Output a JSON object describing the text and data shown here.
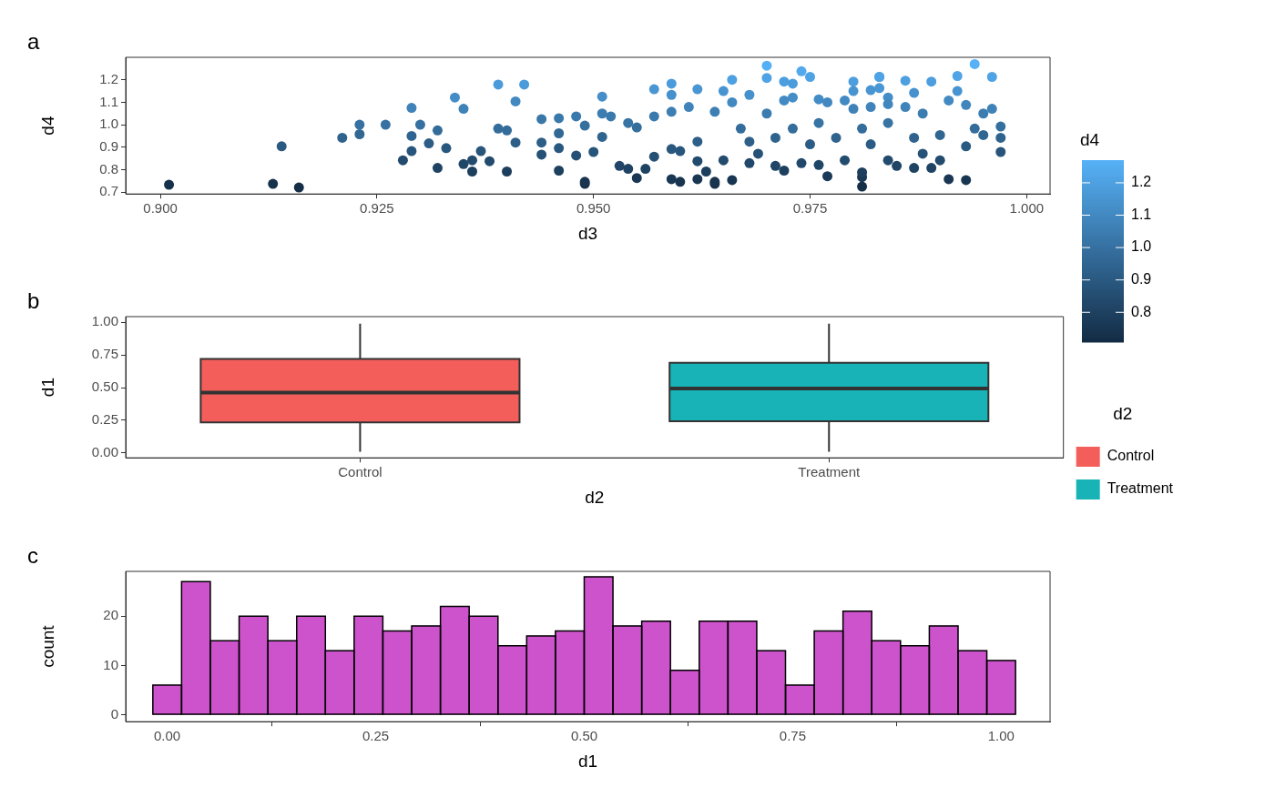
{
  "chart_data": [
    {
      "type": "scatter",
      "title": "a",
      "xlabel": "d3",
      "ylabel": "d4",
      "clabel": "d4",
      "xlim": [
        0.896,
        1.0027
      ],
      "ylim": [
        0.692,
        1.3
      ],
      "xticks": [
        {
          "value": 0.9,
          "label": "0.900"
        },
        0.925,
        {
          "value": 0.95,
          "label": "0.950"
        },
        0.975,
        {
          "value": 1,
          "label": "1.000"
        }
      ],
      "yticks": [
        0.7,
        0.8,
        0.9,
        {
          "value": 1,
          "label": "1.0"
        },
        1.1,
        1.2
      ],
      "clim": [
        0.708,
        1.27
      ],
      "cticks": [
        0.8,
        0.9,
        {
          "value": 1,
          "label": "1.0"
        },
        1.1,
        1.2
      ],
      "grid": false,
      "marker": "circle",
      "x": [
        0.901,
        0.913,
        0.914,
        0.916,
        0.921,
        0.923,
        0.923,
        0.926,
        0.929,
        0.929,
        0.929,
        0.928,
        0.93,
        0.931,
        0.932,
        0.932,
        0.933,
        0.934,
        0.935,
        0.935,
        0.936,
        0.936,
        0.937,
        0.938,
        0.939,
        0.939,
        0.94,
        0.94,
        0.942,
        0.941,
        0.941,
        0.944,
        0.944,
        0.944,
        0.946,
        0.946,
        0.946,
        0.946,
        0.948,
        0.949,
        0.949,
        0.948,
        0.949,
        0.951,
        0.951,
        0.951,
        0.95,
        0.953,
        0.952,
        0.954,
        0.955,
        0.954,
        0.955,
        0.957,
        0.956,
        0.957,
        0.957,
        0.959,
        0.959,
        0.959,
        0.96,
        0.959,
        0.959,
        0.961,
        0.96,
        0.962,
        0.962,
        0.962,
        0.962,
        0.963,
        0.964,
        0.964,
        0.965,
        0.964,
        0.965,
        0.966,
        0.966,
        0.966,
        0.968,
        0.967,
        0.968,
        0.968,
        0.97,
        0.97,
        0.969,
        0.97,
        0.971,
        0.972,
        0.972,
        0.971,
        0.972,
        0.973,
        0.974,
        0.975,
        0.973,
        0.973,
        0.974,
        0.975,
        0.976,
        0.977,
        0.976,
        0.976,
        0.977,
        0.978,
        0.979,
        0.979,
        0.98,
        0.98,
        0.98,
        0.981,
        0.981,
        0.981,
        0.981,
        0.982,
        0.982,
        0.983,
        0.983,
        0.983,
        0.982,
        0.984,
        0.984,
        0.984,
        0.985,
        0.984,
        0.986,
        0.986,
        0.987,
        0.987,
        0.987,
        0.988,
        0.988,
        0.989,
        0.989,
        0.99,
        0.991,
        0.991,
        0.99,
        0.992,
        0.992,
        0.993,
        0.993,
        0.993,
        0.994,
        0.994,
        0.995,
        0.995,
        0.996,
        0.996,
        0.997,
        0.997,
        0.997
      ],
      "values": [
        0.733,
        0.737,
        0.904,
        0.721,
        0.942,
        0.958,
        1.0,
        1.0,
        1.075,
        0.95,
        0.883,
        0.842,
        1.0,
        0.917,
        0.808,
        0.975,
        0.896,
        1.121,
        1.071,
        0.825,
        0.792,
        0.842,
        0.883,
        0.838,
        1.179,
        0.983,
        0.975,
        0.792,
        1.179,
        1.104,
        0.921,
        1.025,
        0.921,
        0.867,
        1.029,
        0.962,
        0.896,
        0.796,
        1.037,
        0.737,
        0.746,
        0.863,
        0.996,
        1.125,
        1.05,
        0.946,
        0.879,
        0.817,
        1.037,
        1.008,
        0.763,
        0.804,
        0.988,
        1.158,
        0.804,
        0.858,
        1.037,
        1.183,
        1.133,
        0.758,
        0.746,
        0.892,
        1.058,
        1.079,
        0.883,
        1.158,
        0.758,
        0.838,
        0.925,
        0.792,
        0.737,
        0.746,
        1.15,
        1.058,
        0.842,
        1.2,
        0.754,
        1.1,
        0.829,
        0.983,
        1.133,
        0.925,
        1.263,
        1.208,
        0.871,
        1.05,
        0.817,
        1.108,
        0.796,
        0.942,
        1.192,
        1.183,
        1.238,
        1.213,
        1.121,
        0.983,
        0.829,
        0.913,
        1.113,
        0.771,
        0.821,
        1.008,
        1.1,
        0.942,
        1.108,
        0.842,
        1.071,
        1.192,
        1.15,
        0.767,
        0.725,
        0.788,
        0.983,
        1.079,
        1.154,
        1.213,
        1.213,
        1.163,
        0.913,
        1.121,
        1.092,
        0.842,
        0.817,
        1.008,
        1.196,
        1.079,
        1.142,
        0.942,
        0.808,
        0.871,
        1.05,
        1.192,
        0.808,
        0.842,
        0.758,
        1.108,
        0.954,
        1.217,
        1.15,
        0.754,
        0.904,
        1.088,
        0.983,
        1.27,
        1.05,
        0.954,
        1.071,
        1.213,
        0.992,
        0.942,
        0.879
      ]
    },
    {
      "type": "box",
      "title": "b",
      "xlabel": "d2",
      "ylabel": "d1",
      "legend_title": "d2",
      "legend": "right",
      "grid": false,
      "categories": [
        "Control",
        "Treatment"
      ],
      "ylim": [
        -0.037,
        1.044
      ],
      "yticks": [
        {
          "value": 0,
          "label": "0.00"
        },
        0.25,
        {
          "value": 0.5,
          "label": "0.50"
        },
        0.75,
        {
          "value": 1,
          "label": "1.00"
        }
      ],
      "series": [
        {
          "name": "Control",
          "color": "#f35e5a",
          "boxes": [
            {
              "low": 0.01,
              "q1": 0.235,
              "median": 0.463,
              "q3": 0.72,
              "high": 0.99
            },
            null
          ]
        },
        {
          "name": "Treatment",
          "color": "#17b3b7",
          "boxes": [
            null,
            {
              "low": 0.01,
              "q1": 0.243,
              "median": 0.493,
              "q3": 0.691,
              "high": 0.99
            }
          ]
        }
      ]
    },
    {
      "type": "histogram",
      "title": "c",
      "xlabel": "d1",
      "ylabel": "count",
      "color": "#cd53cd",
      "grid": false,
      "xlim": [
        -0.0498,
        1.0586
      ],
      "ylim": [
        -1.4,
        29.1
      ],
      "xticks": [
        {
          "value": 0,
          "label": "0.00"
        },
        0.25,
        {
          "value": 0.5,
          "label": "0.50"
        },
        0.75,
        {
          "value": 1,
          "label": "1.00"
        }
      ],
      "yticks": [
        0,
        10,
        20
      ],
      "bins": [
        -0.0172,
        0.0172,
        0.0517,
        0.0862,
        0.1207,
        0.1552,
        0.1897,
        0.2241,
        0.2586,
        0.2931,
        0.3276,
        0.3621,
        0.3966,
        0.431,
        0.4655,
        0.5,
        0.5345,
        0.569,
        0.6034,
        0.6379,
        0.6724,
        0.7069,
        0.7414,
        0.7759,
        0.8103,
        0.8448,
        0.8793,
        0.9138,
        0.9483,
        0.9828,
        1.0172
      ],
      "values": [
        6,
        27,
        15,
        20,
        15,
        20,
        13,
        20,
        17,
        18,
        22,
        20,
        14,
        16,
        17,
        28,
        18,
        19,
        9,
        19,
        19,
        13,
        6,
        17,
        21,
        15,
        14,
        18,
        13,
        11
      ]
    }
  ]
}
